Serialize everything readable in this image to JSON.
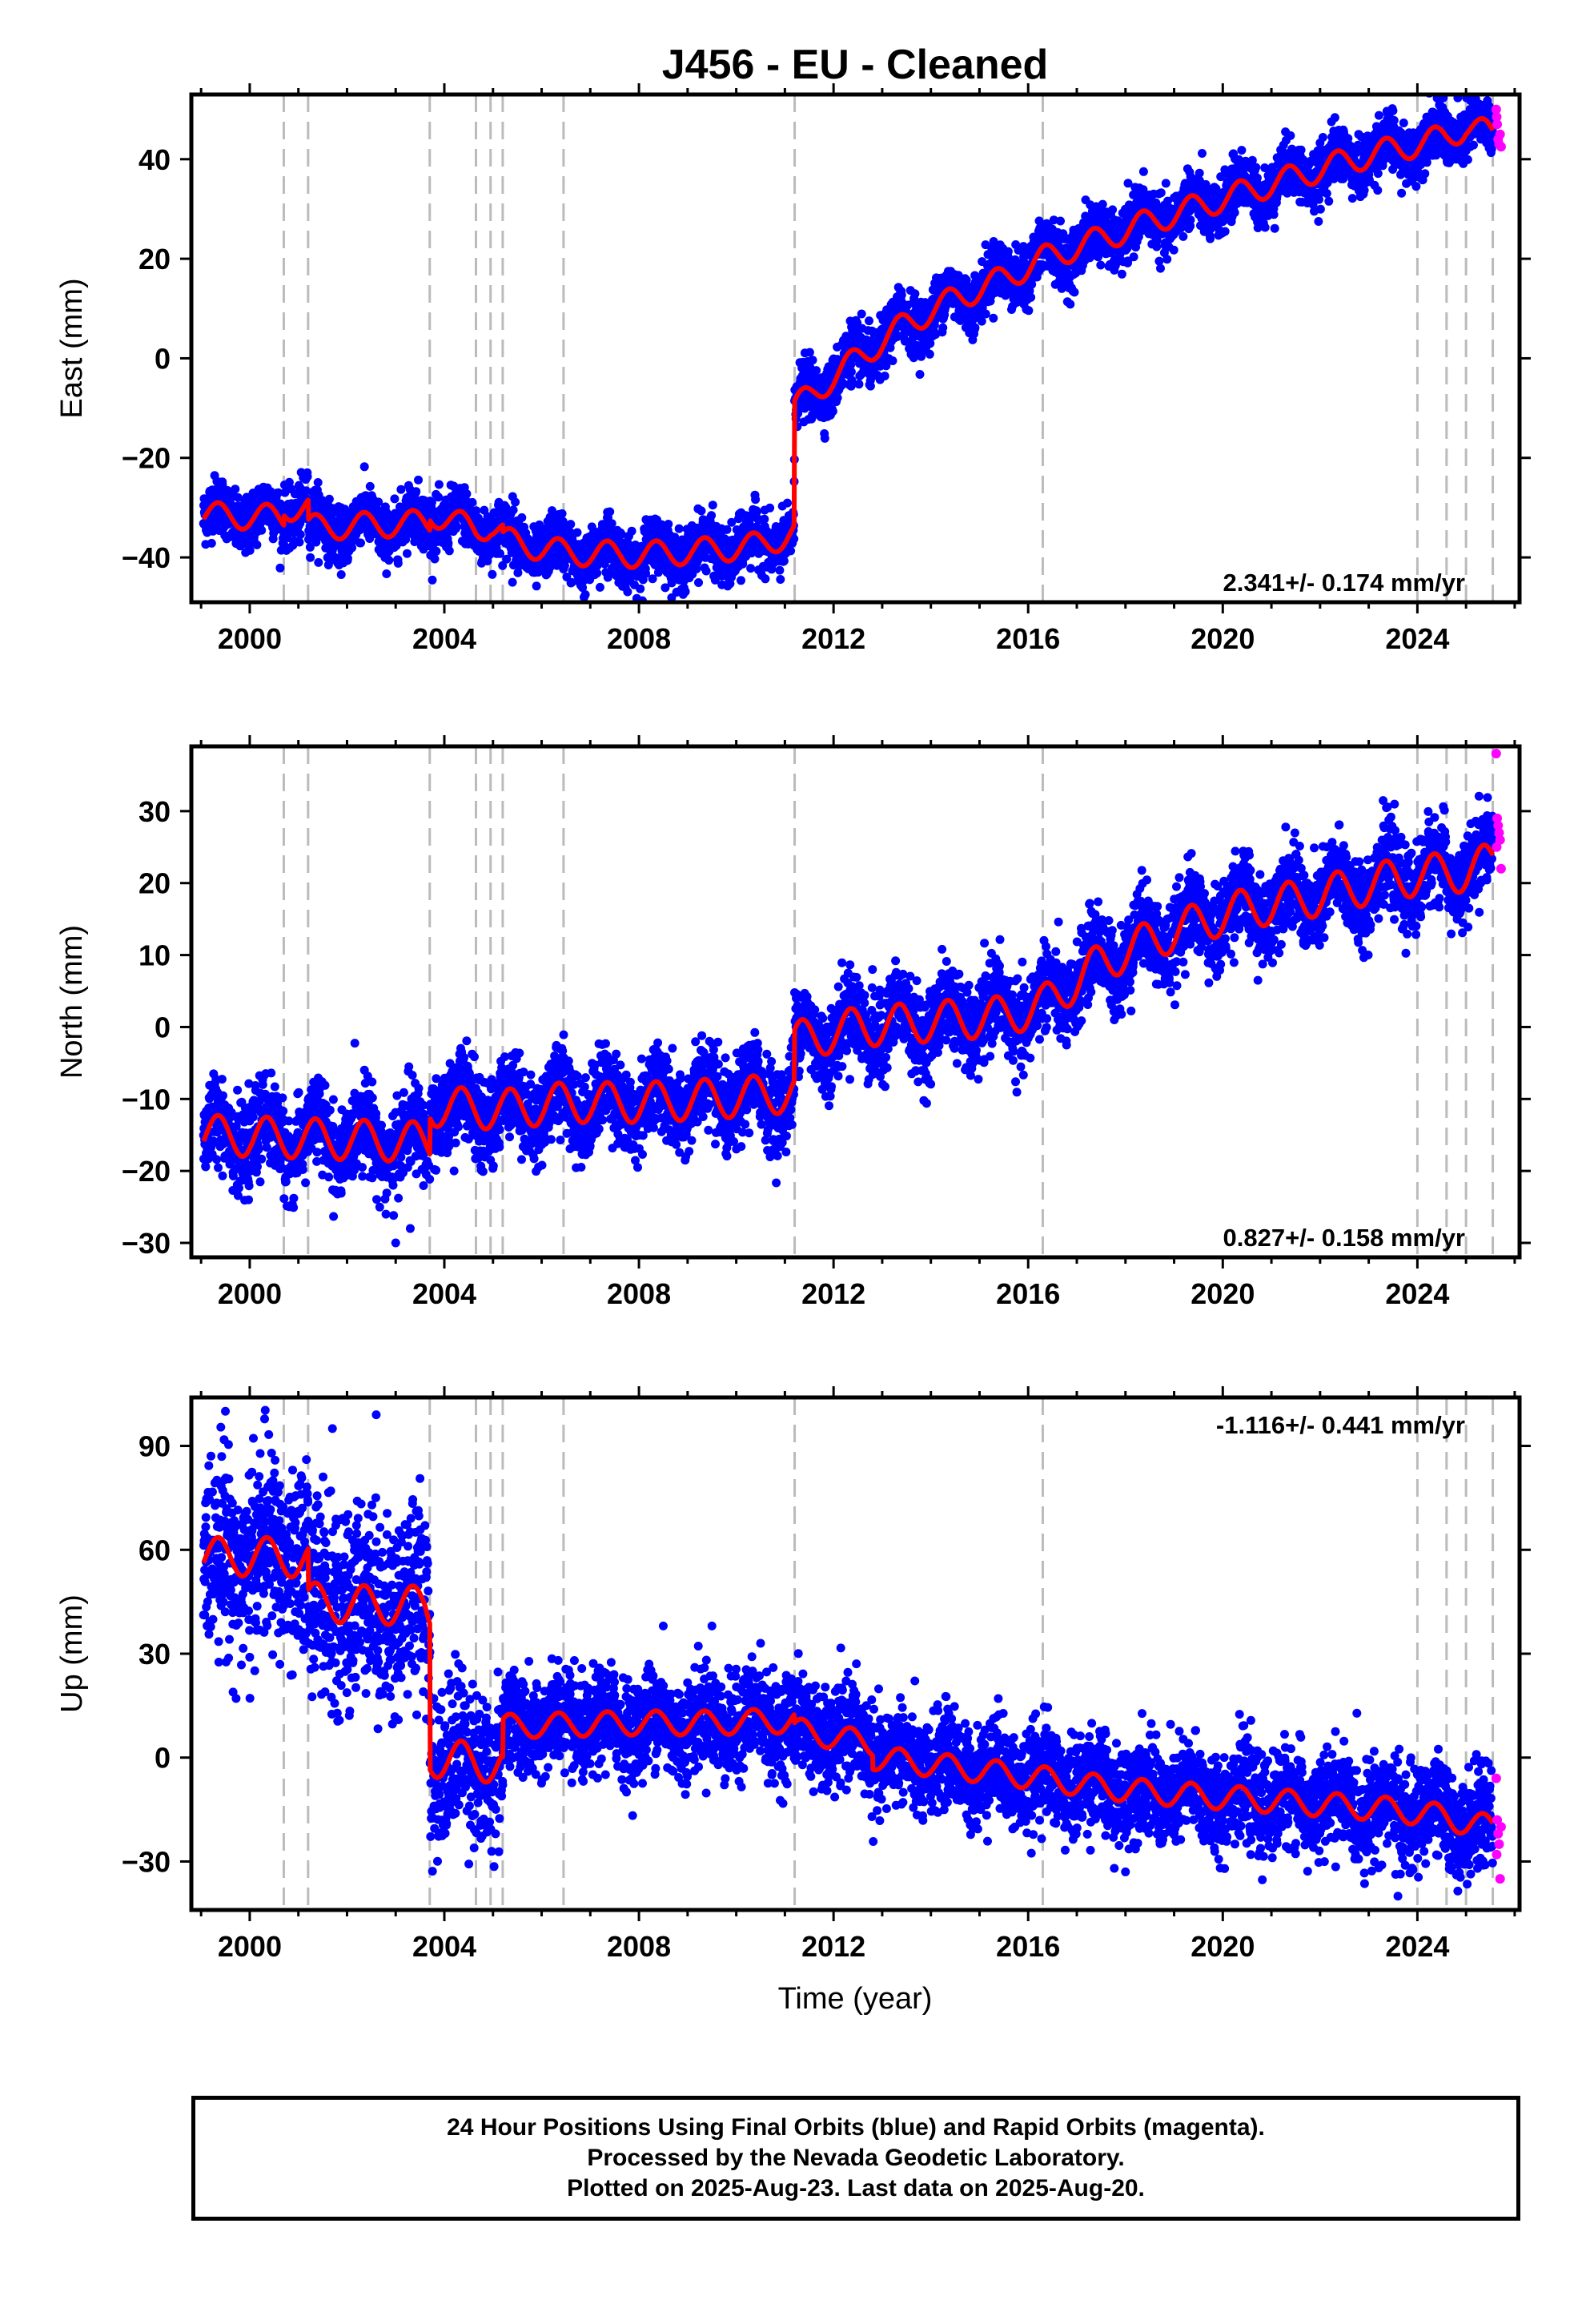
{
  "chart_data": {
    "title": "J456  - EU - Cleaned",
    "type": "scatter",
    "xlabel": "Time (year)",
    "xlim": [
      1998.8,
      2026.1
    ],
    "xticks": [
      2000,
      2004,
      2008,
      2012,
      2016,
      2020,
      2024
    ],
    "xtick_labels": [
      "2000",
      "2004",
      "2008",
      "2012",
      "2016",
      "2020",
      "2024"
    ],
    "grid": false,
    "colors": {
      "final": "#0000ff",
      "rapid": "#ff00ff",
      "model": "#ff0000",
      "events": "#bbbbbb"
    },
    "event_lines": [
      2000.7,
      2001.2,
      2003.7,
      2004.65,
      2004.95,
      2005.2,
      2006.45,
      2011.2,
      2016.3,
      2024.0,
      2024.6,
      2025.0,
      2025.55
    ],
    "panels": [
      {
        "ylabel": "East (mm)",
        "ylim": [
          -49,
          53
        ],
        "yticks": [
          -40,
          -20,
          0,
          20,
          40
        ],
        "ytick_labels": [
          "−40",
          "−20",
          "0",
          "20",
          "40"
        ],
        "rate_label": "2.341+/- 0.174 mm/yr",
        "rate_position": "bottom-right",
        "start": 1999.05,
        "end": 2025.55,
        "model_x": [
          1999.05,
          2000.7,
          2000.71,
          2001.2,
          2001.21,
          2003.7,
          2003.71,
          2004.65,
          2004.95,
          2005.2,
          2005.21,
          2006.45,
          2008.0,
          2009.5,
          2010.5,
          2011.19,
          2011.2,
          2011.7,
          2012.5,
          2013.5,
          2014.5,
          2015.5,
          2016.3,
          2017.5,
          2018.5,
          2019.5,
          2020.5,
          2021.5,
          2022.5,
          2023.5,
          2024.0,
          2024.6,
          2025.0,
          2025.55
        ],
        "model_y": [
          -31.5,
          -32,
          -30,
          -30,
          -34,
          -33,
          -31,
          -34.5,
          -33.5,
          -35,
          -36.5,
          -39,
          -39.5,
          -38.5,
          -37.5,
          -35,
          -10,
          -6,
          0,
          7,
          12,
          16,
          20,
          24,
          27.5,
          30.5,
          33.5,
          36.5,
          39.5,
          42,
          43,
          44.5,
          46.5,
          45
        ],
        "seasonal_amp": 2.6,
        "scatter": 2.8,
        "offsets": [
          [
            2003.7,
            2.0
          ],
          [
            2004.7,
            -2.0
          ]
        ],
        "outliers": [
          [
            2007.2,
            -46
          ],
          [
            2005.4,
            -45
          ],
          [
            2001.1,
            -24
          ],
          [
            2024.3,
            41
          ],
          [
            2010.1,
            -31
          ]
        ],
        "rapid_points": [
          [
            2025.62,
            50
          ],
          [
            2025.64,
            47
          ],
          [
            2025.66,
            44
          ],
          [
            2025.68,
            43
          ],
          [
            2025.7,
            45
          ],
          [
            2025.72,
            42.5
          ],
          [
            2025.63,
            48.5
          ]
        ]
      },
      {
        "ylabel": "North (mm)",
        "ylim": [
          -32,
          39
        ],
        "yticks": [
          -30,
          -20,
          -10,
          0,
          10,
          20,
          30
        ],
        "ytick_labels": [
          "−30",
          "−20",
          "−10",
          "0",
          "10",
          "20",
          "30"
        ],
        "rate_label": "0.827+/- 0.158 mm/yr",
        "rate_position": "bottom-right",
        "start": 1999.05,
        "end": 2025.55,
        "model_x": [
          1999.05,
          2001.2,
          2003.7,
          2003.71,
          2005.2,
          2006.45,
          2008.0,
          2009.5,
          2010.5,
          2011.19,
          2011.2,
          2012.5,
          2013.5,
          2014.5,
          2015.5,
          2016.3,
          2017.5,
          2018.5,
          2019.5,
          2020.5,
          2021.5,
          2022.5,
          2023.5,
          2024.0,
          2024.6,
          2025.0,
          2025.55
        ],
        "model_y": [
          -15,
          -15.5,
          -16,
          -11,
          -11.5,
          -10.5,
          -10.5,
          -10,
          -9.5,
          -9,
          -2,
          0,
          0.5,
          1,
          1.5,
          3,
          9,
          12,
          14.5,
          16.5,
          17.5,
          19,
          20.5,
          21,
          21.5,
          21.5,
          23
        ],
        "seasonal_amp": 2.8,
        "scatter": 2.9,
        "offsets": [],
        "outliers": [
          [
            2003.0,
            -30
          ],
          [
            2003.3,
            -28
          ],
          [
            2004.2,
            -20
          ],
          [
            2012.8,
            8
          ],
          [
            2002.8,
            -26
          ]
        ],
        "rapid_points": [
          [
            2025.62,
            38
          ],
          [
            2025.64,
            29
          ],
          [
            2025.66,
            28
          ],
          [
            2025.68,
            27
          ],
          [
            2025.7,
            26
          ],
          [
            2025.72,
            22
          ],
          [
            2025.63,
            25
          ]
        ]
      },
      {
        "ylabel": "Up (mm)",
        "ylim": [
          -44,
          104
        ],
        "yticks": [
          -30,
          0,
          30,
          60,
          90
        ],
        "ytick_labels": [
          "−30",
          "0",
          "30",
          "60",
          "90"
        ],
        "rate_label": "-1.116+/- 0.441 mm/yr",
        "rate_position": "top-right",
        "start": 1999.05,
        "end": 2025.55,
        "model_x": [
          1999.05,
          2000.7,
          2001.2,
          2001.21,
          2002.5,
          2003.6,
          2003.7,
          2003.71,
          2004.5,
          2005.2,
          2005.21,
          2006.45,
          2008.0,
          2009.5,
          2010.5,
          2011.19,
          2011.2,
          2012.0,
          2012.8,
          2012.81,
          2014.0,
          2016.3,
          2017.5,
          2018.5,
          2019.5,
          2020.5,
          2021.5,
          2022.5,
          2023.5,
          2024.0,
          2024.6,
          2025.0,
          2025.55
        ],
        "model_y": [
          58,
          58,
          57,
          45,
          44,
          44,
          42,
          0,
          -1,
          -2,
          9,
          9.5,
          10,
          10,
          10.5,
          10.5,
          8,
          6,
          4,
          0,
          -2,
          -6,
          -8.5,
          -10,
          -11,
          -12,
          -13,
          -14,
          -15,
          -16,
          -17,
          -19,
          -20
        ],
        "seasonal_amp": 3.5,
        "scatter": 7,
        "offsets": [],
        "seasonal_scale": [
          [
            2003.7,
            2.2
          ],
          [
            2005.2,
            1.6
          ]
        ],
        "outliers": [
          [
            1999.5,
            100
          ],
          [
            2002.6,
            99
          ],
          [
            2001.7,
            95
          ],
          [
            2008.5,
            38
          ],
          [
            2009.5,
            38
          ],
          [
            2010.5,
            33
          ],
          [
            2018.0,
            -33
          ],
          [
            2023.6,
            -40
          ],
          [
            2000.0,
            29
          ],
          [
            2003.9,
            14
          ]
        ],
        "rapid_points": [
          [
            2025.62,
            -6
          ],
          [
            2025.64,
            -18
          ],
          [
            2025.66,
            -22
          ],
          [
            2025.68,
            -25
          ],
          [
            2025.7,
            -35
          ],
          [
            2025.72,
            -20
          ],
          [
            2025.63,
            -28
          ]
        ]
      }
    ],
    "footer_lines": [
      "24 Hour Positions Using Final Orbits (blue) and Rapid Orbits (magenta).",
      "Processed by the Nevada Geodetic Laboratory.",
      "Plotted on 2025-Aug-23. Last data on 2025-Aug-20."
    ]
  }
}
